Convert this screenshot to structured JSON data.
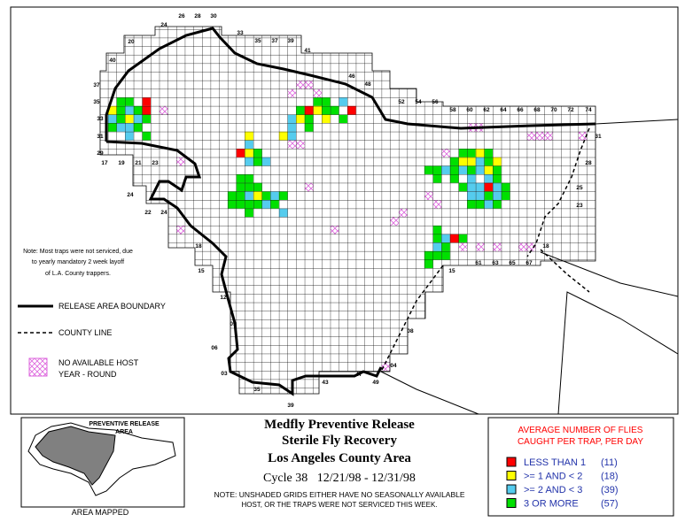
{
  "map": {
    "grid_labels": [
      "26",
      "28",
      "30",
      "24",
      "33",
      "35",
      "37",
      "39",
      "20",
      "41",
      "40",
      "46",
      "48",
      "37",
      "35",
      "52",
      "54",
      "56",
      "33",
      "31",
      "29",
      "17",
      "19",
      "21",
      "23",
      "58",
      "60",
      "62",
      "64",
      "66",
      "68",
      "70",
      "72",
      "74",
      "31",
      "28",
      "25",
      "23",
      "24",
      "22",
      "24",
      "18",
      "18",
      "15",
      "61",
      "63",
      "65",
      "67",
      "15",
      "12",
      "09",
      "08",
      "06",
      "04",
      "03",
      "47",
      "49",
      "43",
      "35",
      "39"
    ],
    "note": [
      "Note: Most traps were not serviced, due",
      "to yearly mandatory 2 week layoff",
      "of L.A. County trappers."
    ],
    "key": {
      "boundary": "RELEASE AREA BOUNDARY",
      "county": "COUNTY LINE",
      "no_host": [
        "NO AVAILABLE HOST",
        "YEAR - ROUND"
      ]
    }
  },
  "title": [
    "Medfly Preventive Release",
    "Sterile Fly Recovery",
    "Los Angeles County Area",
    "Cycle 38   12/21/98 - 12/31/98"
  ],
  "footnote": [
    "NOTE: UNSHADED GRIDS EITHER HAVE NO SEASONALLY AVAILABLE",
    "HOST, OR THE TRAPS WERE NOT SERVICED THIS WEEK."
  ],
  "inset": {
    "title": [
      "PREVENTIVE RELEASE",
      "AREA"
    ],
    "caption": "AREA MAPPED"
  },
  "legend": {
    "title": [
      "AVERAGE NUMBER OF FLIES",
      "CAUGHT PER TRAP, PER DAY"
    ],
    "items": [
      {
        "label": "LESS THAN 1",
        "count": "(11)",
        "color": "#ff0000"
      },
      {
        "label": ">= 1 AND < 2",
        "count": "(18)",
        "color": "#ffff00"
      },
      {
        "label": ">= 2 AND < 3",
        "count": "(39)",
        "color": "#55ccee"
      },
      {
        "label": "3 OR MORE",
        "count": "(57)",
        "color": "#00e000"
      }
    ]
  }
}
